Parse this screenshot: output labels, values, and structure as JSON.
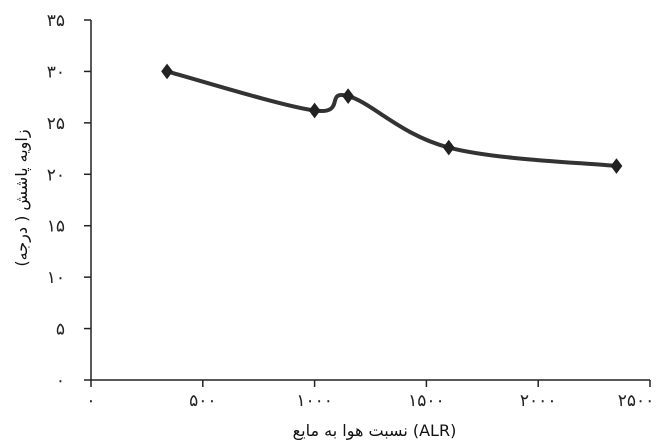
{
  "chart_data": {
    "type": "line",
    "title": "",
    "xlabel": "نسبت هوا به مایع (ALR)",
    "ylabel": "زاویه پاشش ( درجه)",
    "xlim": [
      0,
      2500
    ],
    "ylim": [
      0,
      35
    ],
    "x_ticks": [
      0,
      500,
      1000,
      1500,
      2000,
      2500
    ],
    "x_tick_labels": [
      "۰",
      "۵۰۰",
      "۱۰۰۰",
      "۱۵۰۰",
      "۲۰۰۰",
      "۲۵۰۰"
    ],
    "y_ticks": [
      0,
      5,
      10,
      15,
      20,
      25,
      30,
      35
    ],
    "y_tick_labels": [
      "۰",
      "۵",
      "۱۰",
      "۱۵",
      "۲۰",
      "۲۵",
      "۳۰",
      "۳۵"
    ],
    "grid": false,
    "legend": "none",
    "series": [
      {
        "x": [
          340,
          1000,
          1150,
          1600,
          2350
        ],
        "y": [
          30,
          26.2,
          27.6,
          22.6,
          20.8
        ],
        "color": "#333333",
        "marker": "diamond"
      }
    ]
  }
}
